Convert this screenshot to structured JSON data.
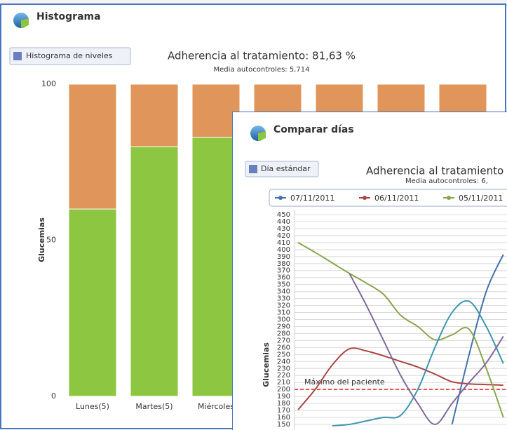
{
  "windows": [
    {
      "title": "Histograma",
      "button": "Histograma de niveles",
      "chart": {
        "type": "bar",
        "stacked": true,
        "title": "Adherencia al tratamiento: 81,63 %",
        "subtitle": "Media autocontroles: 5,714",
        "ylabel": "Glucemias",
        "categories": [
          "Lunes(5)",
          "Martes(5)",
          "Miércoles",
          null,
          null,
          null,
          null
        ],
        "series": [
          {
            "color": "#8dc640",
            "values": [
              60,
              80,
              83,
              80,
              80,
              80,
              80
            ]
          },
          {
            "color": "#e0965a",
            "values": [
              40,
              20,
              17,
              20,
              20,
              20,
              20
            ]
          }
        ],
        "ylim": [
          0,
          100
        ],
        "yticks": [
          0,
          50,
          100
        ]
      }
    },
    {
      "title": "Comparar días",
      "button": "Día estándar",
      "chart": {
        "type": "line",
        "title": "Adherencia al tratamiento",
        "subtitle": "Media autocontroles: 6,",
        "ylabel": "Glucemias",
        "categories": [
          null,
          null,
          null,
          null,
          null,
          null,
          null,
          null,
          null,
          null,
          null,
          null,
          null
        ],
        "series": [
          {
            "name": "07/11/2011",
            "color": "#4572a7",
            "values": [
              null,
              null,
              null,
              null,
              null,
              null,
              null,
              null,
              null,
              150,
              250,
              340,
              393
            ]
          },
          {
            "name": "06/11/2011",
            "color": "#aa4643",
            "values": [
              171,
              200,
              235,
              258,
              255,
              248,
              240,
              232,
              222,
              211,
              208,
              207,
              206
            ]
          },
          {
            "name": "05/11/2011",
            "color": "#89a54e",
            "values": [
              410,
              396,
              381,
              366,
              352,
              336,
              306,
              290,
              271,
              278,
              286,
              230,
              160
            ]
          },
          {
            "color": "#3d96ae",
            "values": [
              null,
              null,
              148,
              150,
              155,
              160,
              163,
              200,
              260,
              310,
              326,
              290,
              237
            ]
          },
          {
            "color": "#80699b",
            "values": [
              null,
              null,
              null,
              366,
              320,
              270,
              220,
              180,
              150,
              180,
              210,
              238,
              276
            ]
          }
        ],
        "reference_line": {
          "value": 200,
          "label": "Máximo del paciente",
          "color": "#e03030"
        },
        "ylim": [
          150,
          450
        ],
        "yticks": [
          150,
          160,
          170,
          180,
          190,
          200,
          210,
          220,
          230,
          240,
          250,
          260,
          270,
          280,
          290,
          300,
          310,
          320,
          330,
          340,
          350,
          360,
          370,
          380,
          390,
          400,
          410,
          420,
          430,
          440,
          450
        ]
      }
    }
  ]
}
